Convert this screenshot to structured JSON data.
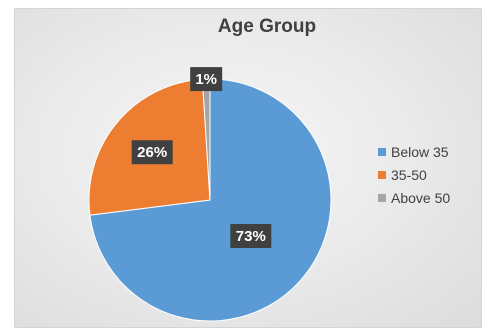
{
  "chart_data": {
    "type": "pie",
    "title": "Age Group",
    "categories": [
      "Below 35",
      "35-50",
      "Above 50"
    ],
    "values": [
      73,
      26,
      1
    ],
    "data_labels": [
      "73%",
      "26%",
      "1%"
    ],
    "colors": [
      "#5b9bd5",
      "#ed7d31",
      "#a5a5a5"
    ],
    "legend": "right",
    "start_angle_deg": 0,
    "direction": "clockwise"
  }
}
